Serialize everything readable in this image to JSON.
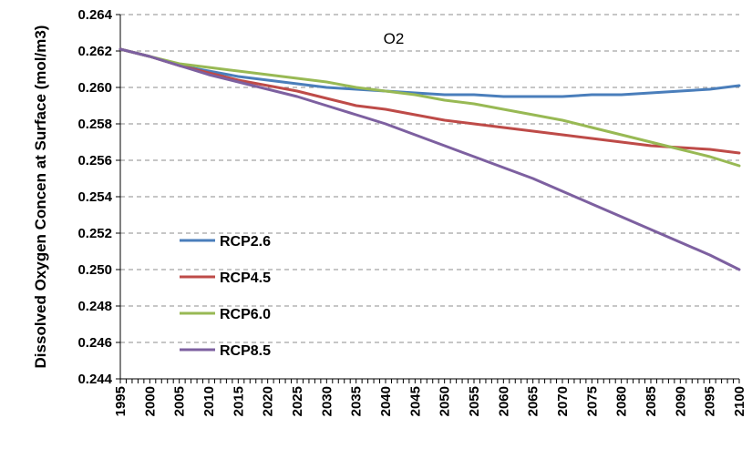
{
  "chart_data": {
    "type": "line",
    "title": "O2",
    "xlabel": "",
    "ylabel": "Dissolved Oxygen Concen at Surface (mol/m3)",
    "xlim": [
      1995,
      2100
    ],
    "ylim": [
      0.244,
      0.264
    ],
    "y_ticks": [
      "0.244",
      "0.246",
      "0.248",
      "0.250",
      "0.252",
      "0.254",
      "0.256",
      "0.258",
      "0.260",
      "0.262",
      "0.264"
    ],
    "x_ticks": [
      "1995",
      "2000",
      "2005",
      "2010",
      "2015",
      "2020",
      "2025",
      "2030",
      "2035",
      "2040",
      "2045",
      "2050",
      "2055",
      "2060",
      "2065",
      "2070",
      "2075",
      "2080",
      "2085",
      "2090",
      "2095",
      "2100"
    ],
    "grid": "horizontal dashed",
    "legend_placement": "center-left",
    "x": [
      1995,
      2000,
      2005,
      2010,
      2015,
      2020,
      2025,
      2030,
      2035,
      2040,
      2045,
      2050,
      2055,
      2060,
      2065,
      2070,
      2075,
      2080,
      2085,
      2090,
      2095,
      2100
    ],
    "series": [
      {
        "name": "RCP2.6",
        "color": "#4a7ebb",
        "values": [
          0.2621,
          0.2617,
          0.2612,
          0.2609,
          0.2606,
          0.2604,
          0.2602,
          0.26,
          0.2599,
          0.2598,
          0.2597,
          0.2596,
          0.2596,
          0.2595,
          0.2595,
          0.2595,
          0.2596,
          0.2596,
          0.2597,
          0.2598,
          0.2599,
          0.2601
        ]
      },
      {
        "name": "RCP4.5",
        "color": "#be4b48",
        "values": [
          0.2621,
          0.2617,
          0.2612,
          0.2608,
          0.2604,
          0.2601,
          0.2598,
          0.2594,
          0.259,
          0.2588,
          0.2585,
          0.2582,
          0.258,
          0.2578,
          0.2576,
          0.2574,
          0.2572,
          0.257,
          0.2568,
          0.2567,
          0.2566,
          0.2564
        ]
      },
      {
        "name": "RCP6.0",
        "color": "#98b954",
        "values": [
          0.2621,
          0.2617,
          0.2613,
          0.2611,
          0.2609,
          0.2607,
          0.2605,
          0.2603,
          0.26,
          0.2598,
          0.2596,
          0.2593,
          0.2591,
          0.2588,
          0.2585,
          0.2582,
          0.2578,
          0.2574,
          0.257,
          0.2566,
          0.2562,
          0.2557
        ]
      },
      {
        "name": "RCP8.5",
        "color": "#7d60a0",
        "values": [
          0.2621,
          0.2617,
          0.2612,
          0.2607,
          0.2603,
          0.2599,
          0.2595,
          0.259,
          0.2585,
          0.258,
          0.2574,
          0.2568,
          0.2562,
          0.2556,
          0.255,
          0.2543,
          0.2536,
          0.2529,
          0.2522,
          0.2515,
          0.2508,
          0.25
        ]
      }
    ]
  }
}
